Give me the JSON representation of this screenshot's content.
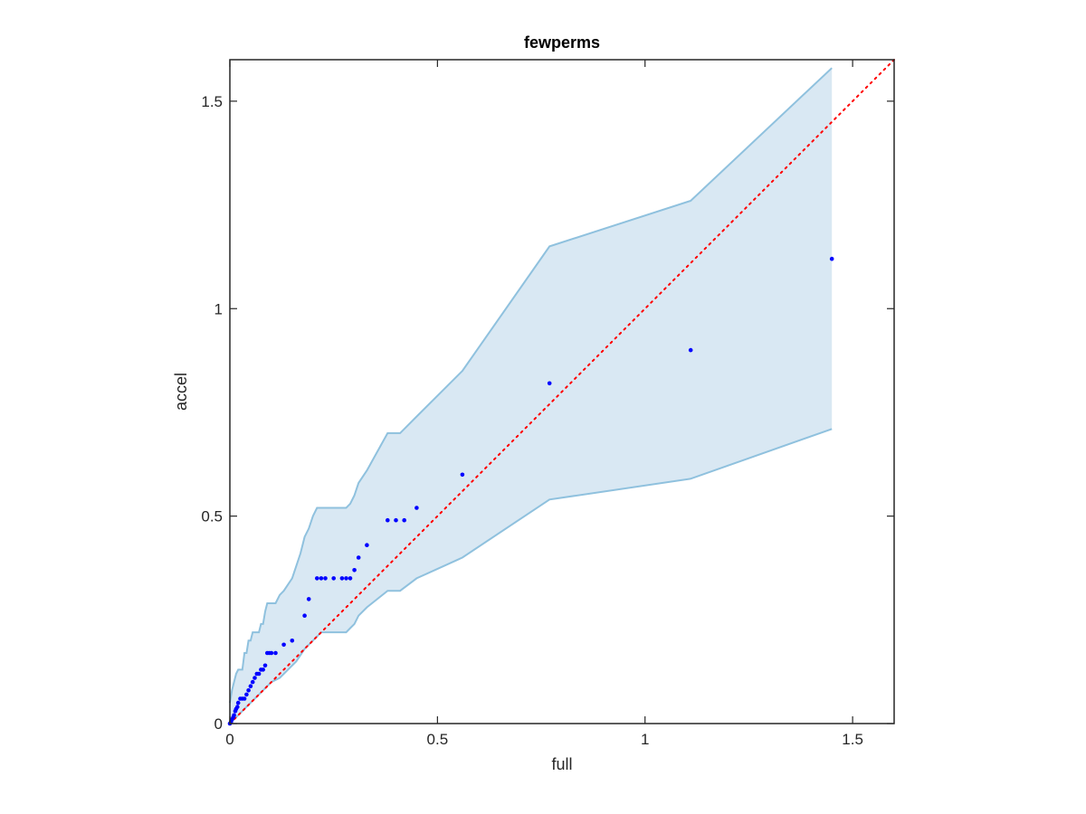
{
  "chart_data": {
    "type": "scatter",
    "title": "fewperms",
    "xlabel": "full",
    "ylabel": "accel",
    "xlim": [
      0,
      1.6
    ],
    "ylim": [
      0,
      1.6
    ],
    "xticks": [
      0,
      0.5,
      1,
      1.5
    ],
    "yticks": [
      0,
      0.5,
      1,
      1.5
    ],
    "xtick_labels": [
      "0",
      "0.5",
      "1",
      "1.5"
    ],
    "ytick_labels": [
      "0",
      "0.5",
      "1",
      "1.5"
    ],
    "grid": false,
    "colors": {
      "points": "#0000ff",
      "band_fill": "#d9e8f3",
      "band_edge": "#8fc1de",
      "reference_line": "#ff0000",
      "axes": "#262626"
    },
    "reference_line": {
      "style": "dotted",
      "x": [
        0,
        1.6
      ],
      "y": [
        0,
        1.6
      ]
    },
    "band_upper": {
      "x": [
        0,
        0.005,
        0.01,
        0.015,
        0.02,
        0.025,
        0.03,
        0.035,
        0.04,
        0.045,
        0.05,
        0.055,
        0.06,
        0.065,
        0.07,
        0.075,
        0.08,
        0.085,
        0.09,
        0.1,
        0.11,
        0.12,
        0.13,
        0.15,
        0.16,
        0.17,
        0.18,
        0.19,
        0.2,
        0.21,
        0.22,
        0.25,
        0.28,
        0.29,
        0.3,
        0.31,
        0.33,
        0.38,
        0.41,
        0.45,
        0.56,
        0.77,
        1.11,
        1.45
      ],
      "y": [
        0.05,
        0.08,
        0.1,
        0.12,
        0.13,
        0.13,
        0.13,
        0.17,
        0.17,
        0.2,
        0.2,
        0.22,
        0.22,
        0.22,
        0.22,
        0.24,
        0.24,
        0.27,
        0.29,
        0.29,
        0.29,
        0.31,
        0.32,
        0.35,
        0.38,
        0.41,
        0.45,
        0.47,
        0.5,
        0.52,
        0.52,
        0.52,
        0.52,
        0.53,
        0.55,
        0.58,
        0.61,
        0.7,
        0.7,
        0.74,
        0.85,
        1.15,
        1.26,
        1.58
      ]
    },
    "band_lower": {
      "x": [
        0,
        0.01,
        0.02,
        0.03,
        0.04,
        0.05,
        0.06,
        0.07,
        0.08,
        0.09,
        0.1,
        0.12,
        0.14,
        0.16,
        0.18,
        0.2,
        0.22,
        0.28,
        0.29,
        0.3,
        0.31,
        0.33,
        0.38,
        0.41,
        0.45,
        0.56,
        0.77,
        1.11,
        1.45
      ],
      "y": [
        0.0,
        0.01,
        0.02,
        0.03,
        0.04,
        0.05,
        0.06,
        0.07,
        0.08,
        0.09,
        0.1,
        0.11,
        0.13,
        0.15,
        0.18,
        0.2,
        0.22,
        0.22,
        0.23,
        0.24,
        0.26,
        0.28,
        0.32,
        0.32,
        0.35,
        0.4,
        0.54,
        0.59,
        0.71
      ]
    },
    "points": {
      "x": [
        0.0,
        0.003,
        0.005,
        0.008,
        0.01,
        0.013,
        0.015,
        0.018,
        0.02,
        0.025,
        0.03,
        0.035,
        0.04,
        0.045,
        0.05,
        0.055,
        0.06,
        0.065,
        0.07,
        0.075,
        0.08,
        0.085,
        0.09,
        0.095,
        0.1,
        0.11,
        0.13,
        0.15,
        0.18,
        0.19,
        0.21,
        0.22,
        0.23,
        0.25,
        0.27,
        0.28,
        0.29,
        0.3,
        0.31,
        0.33,
        0.38,
        0.4,
        0.42,
        0.45,
        0.56,
        0.77,
        1.11,
        1.45
      ],
      "y": [
        0.0,
        0.005,
        0.01,
        0.015,
        0.02,
        0.03,
        0.035,
        0.04,
        0.05,
        0.06,
        0.06,
        0.06,
        0.07,
        0.08,
        0.09,
        0.1,
        0.11,
        0.12,
        0.12,
        0.13,
        0.13,
        0.14,
        0.17,
        0.17,
        0.17,
        0.17,
        0.19,
        0.2,
        0.26,
        0.3,
        0.35,
        0.35,
        0.35,
        0.35,
        0.35,
        0.35,
        0.35,
        0.37,
        0.4,
        0.43,
        0.49,
        0.49,
        0.49,
        0.52,
        0.6,
        0.82,
        0.9,
        1.12
      ]
    }
  }
}
